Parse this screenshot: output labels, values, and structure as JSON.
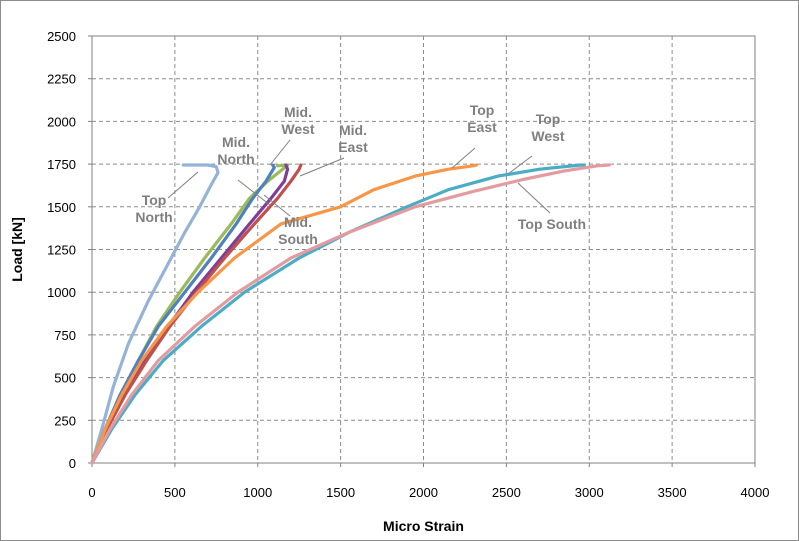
{
  "chart_data": {
    "type": "line",
    "title": "",
    "xlabel": "Micro Strain",
    "ylabel": "Load [kN]",
    "xlim": [
      0,
      4000
    ],
    "ylim": [
      0,
      2500
    ],
    "x_ticks": [
      "0",
      "500",
      "1000",
      "1500",
      "2000",
      "2500",
      "3000",
      "3500",
      "4000"
    ],
    "y_ticks": [
      "0",
      "250",
      "500",
      "750",
      "1000",
      "1250",
      "1500",
      "1750",
      "2000",
      "2250",
      "2500"
    ],
    "grid": true,
    "legend": "none",
    "annotations": [
      {
        "lines": [
          "Top",
          "North"
        ]
      },
      {
        "lines": [
          "Mid.",
          "North"
        ]
      },
      {
        "lines": [
          "Mid.",
          "West"
        ]
      },
      {
        "lines": [
          "Mid.",
          "East"
        ]
      },
      {
        "lines": [
          "Mid.",
          "South"
        ]
      },
      {
        "lines": [
          "Top",
          "East"
        ]
      },
      {
        "lines": [
          "Top",
          "West"
        ]
      },
      {
        "lines": [
          "Top South"
        ]
      }
    ],
    "series": [
      {
        "color": "#95b3d7",
        "points": [
          [
            0,
            0
          ],
          [
            60,
            200
          ],
          [
            130,
            450
          ],
          [
            220,
            700
          ],
          [
            340,
            950
          ],
          [
            450,
            1150
          ],
          [
            560,
            1350
          ],
          [
            650,
            1500
          ],
          [
            720,
            1630
          ],
          [
            760,
            1700
          ],
          [
            750,
            1735
          ],
          [
            700,
            1745
          ],
          [
            620,
            1745
          ],
          [
            550,
            1745
          ]
        ]
      },
      {
        "color": "#9bbb59",
        "points": [
          [
            0,
            0
          ],
          [
            80,
            200
          ],
          [
            170,
            400
          ],
          [
            280,
            600
          ],
          [
            390,
            800
          ],
          [
            530,
            1000
          ],
          [
            680,
            1200
          ],
          [
            840,
            1400
          ],
          [
            950,
            1550
          ],
          [
            1060,
            1650
          ],
          [
            1150,
            1720
          ],
          [
            1180,
            1745
          ],
          [
            1120,
            1740
          ]
        ]
      },
      {
        "color": "#4f81bd",
        "points": [
          [
            0,
            0
          ],
          [
            80,
            200
          ],
          [
            170,
            400
          ],
          [
            280,
            600
          ],
          [
            400,
            800
          ],
          [
            560,
            1000
          ],
          [
            720,
            1200
          ],
          [
            870,
            1400
          ],
          [
            970,
            1550
          ],
          [
            1050,
            1650
          ],
          [
            1100,
            1730
          ],
          [
            1090,
            1745
          ]
        ]
      },
      {
        "color": "#7f3f98",
        "points": [
          [
            0,
            0
          ],
          [
            90,
            200
          ],
          [
            200,
            400
          ],
          [
            320,
            600
          ],
          [
            460,
            800
          ],
          [
            610,
            1000
          ],
          [
            780,
            1200
          ],
          [
            950,
            1400
          ],
          [
            1080,
            1550
          ],
          [
            1160,
            1650
          ],
          [
            1180,
            1720
          ],
          [
            1170,
            1745
          ]
        ]
      },
      {
        "color": "#c0504d",
        "points": [
          [
            0,
            0
          ],
          [
            90,
            200
          ],
          [
            200,
            400
          ],
          [
            330,
            600
          ],
          [
            470,
            800
          ],
          [
            630,
            1000
          ],
          [
            800,
            1200
          ],
          [
            980,
            1400
          ],
          [
            1120,
            1550
          ],
          [
            1200,
            1650
          ],
          [
            1250,
            1720
          ],
          [
            1260,
            1745
          ]
        ]
      },
      {
        "color": "#f79646",
        "points": [
          [
            0,
            0
          ],
          [
            80,
            200
          ],
          [
            180,
            400
          ],
          [
            300,
            600
          ],
          [
            450,
            800
          ],
          [
            640,
            1000
          ],
          [
            860,
            1200
          ],
          [
            1140,
            1400
          ],
          [
            1500,
            1500
          ],
          [
            1700,
            1600
          ],
          [
            1950,
            1680
          ],
          [
            2150,
            1720
          ],
          [
            2300,
            1740
          ],
          [
            2320,
            1745
          ]
        ]
      },
      {
        "color": "#4bacc6",
        "points": [
          [
            0,
            0
          ],
          [
            120,
            200
          ],
          [
            260,
            400
          ],
          [
            430,
            600
          ],
          [
            660,
            800
          ],
          [
            920,
            1000
          ],
          [
            1250,
            1200
          ],
          [
            1550,
            1350
          ],
          [
            1900,
            1500
          ],
          [
            2150,
            1600
          ],
          [
            2450,
            1680
          ],
          [
            2700,
            1720
          ],
          [
            2950,
            1745
          ],
          [
            2970,
            1745
          ]
        ]
      },
      {
        "color": "#e39ba0",
        "points": [
          [
            0,
            0
          ],
          [
            110,
            200
          ],
          [
            240,
            400
          ],
          [
            400,
            600
          ],
          [
            620,
            800
          ],
          [
            880,
            1000
          ],
          [
            1200,
            1200
          ],
          [
            1550,
            1350
          ],
          [
            1950,
            1500
          ],
          [
            2300,
            1590
          ],
          [
            2600,
            1660
          ],
          [
            2850,
            1710
          ],
          [
            3050,
            1740
          ],
          [
            3120,
            1745
          ]
        ]
      }
    ]
  }
}
